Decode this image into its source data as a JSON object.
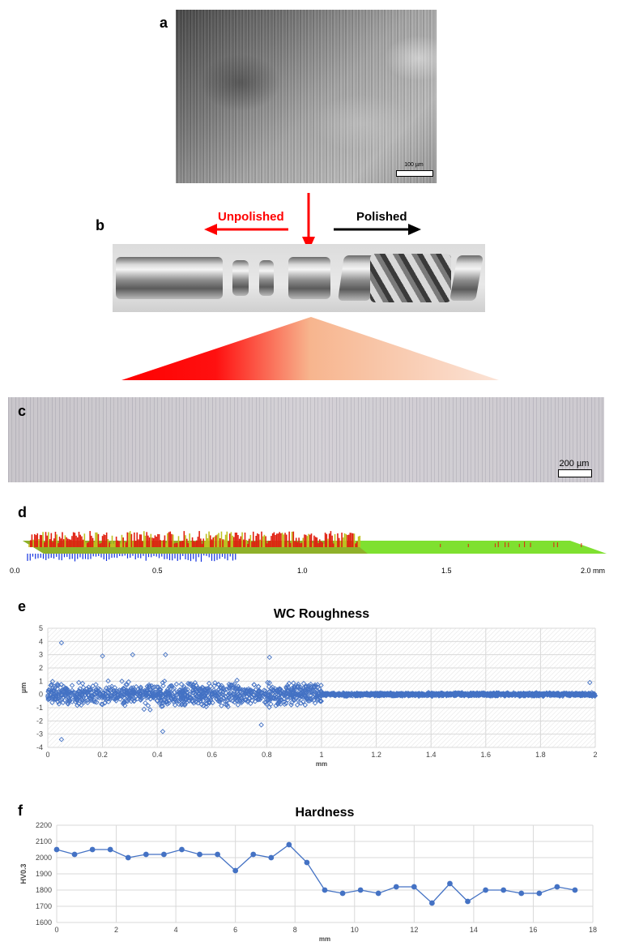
{
  "panels": {
    "a": {
      "letter": "a",
      "scalebar": "100 µm"
    },
    "b": {
      "letter": "b",
      "unpolished": "Unpolished",
      "polished": "Polished"
    },
    "c": {
      "letter": "c",
      "scalebar": "200 µm"
    },
    "d": {
      "letter": "d",
      "ticks": [
        "0.0",
        "0.5",
        "1.0",
        "1.5",
        "2.0 mm"
      ]
    },
    "e": {
      "letter": "e"
    },
    "f": {
      "letter": "f"
    }
  },
  "colors": {
    "arrow_red": "#ff0000",
    "arrow_black": "#000000",
    "series_blue": "#4472c4",
    "surface_red": "#e02010",
    "surface_green": "#7fe030",
    "surface_blue": "#1030e0"
  },
  "chart_data": [
    {
      "type": "scatter",
      "title": "WC Roughness",
      "xlabel": "mm",
      "ylabel": "µm",
      "xlim": [
        0,
        2
      ],
      "ylim": [
        -4,
        5
      ],
      "x_ticks": [
        "0",
        "0.2",
        "0.4",
        "0.6",
        "0.8",
        "1",
        "1.2",
        "1.4",
        "1.6",
        "1.8",
        "2"
      ],
      "y_ticks": [
        "5",
        "4",
        "3",
        "2",
        "1",
        "0",
        "-1",
        "-2",
        "-3",
        "-4"
      ],
      "grid": true,
      "marker": "open-diamond",
      "regions": [
        {
          "x_range": [
            0,
            1.0
          ],
          "spread": 1.0
        },
        {
          "x_range": [
            1.0,
            2.0
          ],
          "spread": 0.15
        }
      ],
      "notable_points": [
        {
          "x": 0.05,
          "y": 3.9
        },
        {
          "x": 0.05,
          "y": -3.4
        },
        {
          "x": 0.31,
          "y": 3.0
        },
        {
          "x": 0.43,
          "y": 3.0
        },
        {
          "x": 0.42,
          "y": -2.8
        },
        {
          "x": 0.81,
          "y": 2.8
        },
        {
          "x": 0.2,
          "y": 2.9
        },
        {
          "x": 0.78,
          "y": -2.3
        },
        {
          "x": 1.98,
          "y": 0.9
        }
      ]
    },
    {
      "type": "line",
      "title": "Hardness",
      "xlabel": "mm",
      "ylabel": "HV0.3",
      "xlim": [
        0,
        18
      ],
      "ylim": [
        1600,
        2200
      ],
      "x_ticks": [
        "0",
        "2",
        "4",
        "6",
        "8",
        "10",
        "12",
        "14",
        "16",
        "18"
      ],
      "y_ticks": [
        "2200",
        "2100",
        "2000",
        "1900",
        "1800",
        "1700",
        "1600"
      ],
      "grid": true,
      "series": [
        {
          "x": [
            0,
            0.6,
            1.2,
            1.8,
            2.4,
            3.0,
            3.6,
            4.2,
            4.8,
            5.4,
            6.0,
            6.6,
            7.2,
            7.8,
            8.4,
            9.0,
            9.6,
            10.2,
            10.8,
            11.4,
            12.0,
            12.6,
            13.2,
            13.8,
            14.4,
            15.0,
            15.6,
            16.2,
            16.8,
            17.4
          ],
          "values": [
            2050,
            2020,
            2050,
            2050,
            2000,
            2020,
            2020,
            2050,
            2020,
            2020,
            1920,
            2020,
            2000,
            2080,
            1970,
            1800,
            1780,
            1800,
            1780,
            1820,
            1820,
            1720,
            1840,
            1730,
            1800,
            1800,
            1780,
            1780,
            1820,
            1800
          ]
        }
      ]
    }
  ]
}
